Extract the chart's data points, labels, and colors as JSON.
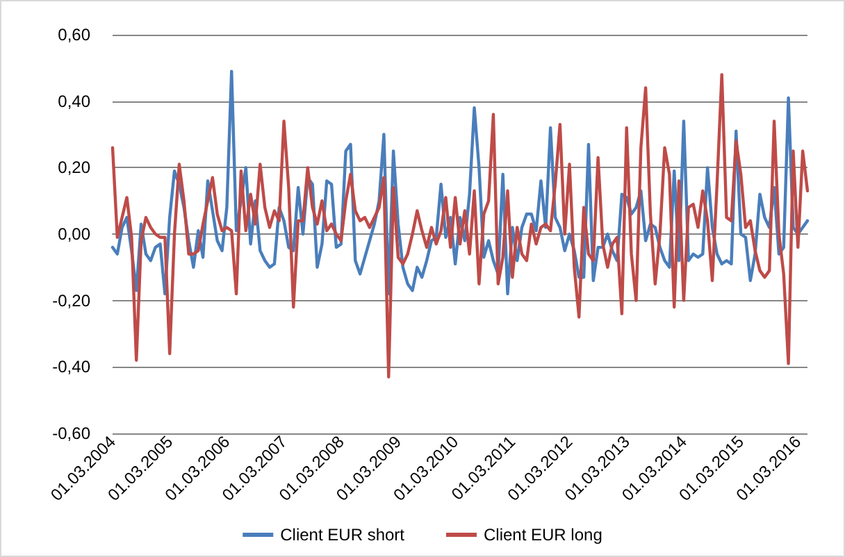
{
  "chart_data": {
    "type": "line",
    "categories": [
      "01.03.2004",
      null,
      null,
      null,
      null,
      null,
      null,
      null,
      null,
      null,
      null,
      null,
      "01.03.2005",
      null,
      null,
      null,
      null,
      null,
      null,
      null,
      null,
      null,
      null,
      null,
      "01.03.2006",
      null,
      null,
      null,
      null,
      null,
      null,
      null,
      null,
      null,
      null,
      null,
      "01.03.2007",
      null,
      null,
      null,
      null,
      null,
      null,
      null,
      null,
      null,
      null,
      null,
      "01.03.2008",
      null,
      null,
      null,
      null,
      null,
      null,
      null,
      null,
      null,
      null,
      null,
      "01.03.2009",
      null,
      null,
      null,
      null,
      null,
      null,
      null,
      null,
      null,
      null,
      null,
      "01.03.2010",
      null,
      null,
      null,
      null,
      null,
      null,
      null,
      null,
      null,
      null,
      null,
      "01.03.2011",
      null,
      null,
      null,
      null,
      null,
      null,
      null,
      null,
      null,
      null,
      null,
      "01.03.2012",
      null,
      null,
      null,
      null,
      null,
      null,
      null,
      null,
      null,
      null,
      null,
      "01.03.2013",
      null,
      null,
      null,
      null,
      null,
      null,
      null,
      null,
      null,
      null,
      null,
      "01.03.2014",
      null,
      null,
      null,
      null,
      null,
      null,
      null,
      null,
      null,
      null,
      null,
      "01.03.2015",
      null,
      null,
      null,
      null,
      null,
      null,
      null,
      null,
      null,
      null,
      null,
      "01.03.2016",
      null,
      null
    ],
    "series": [
      {
        "name": "Client EUR short",
        "color": "#4a7ebb",
        "values": [
          -0.04,
          -0.06,
          0.02,
          0.05,
          -0.05,
          -0.17,
          0.03,
          -0.06,
          -0.08,
          -0.04,
          -0.03,
          -0.18,
          0.05,
          0.19,
          0.15,
          0.08,
          -0.02,
          -0.1,
          0.01,
          -0.07,
          0.16,
          0.07,
          -0.02,
          -0.05,
          0.08,
          0.49,
          0.01,
          0.1,
          0.2,
          -0.03,
          0.1,
          -0.05,
          -0.08,
          -0.1,
          -0.09,
          0.08,
          0.04,
          -0.04,
          -0.05,
          0.14,
          0.0,
          0.17,
          0.15,
          -0.1,
          -0.03,
          0.16,
          0.15,
          -0.04,
          -0.03,
          0.25,
          0.27,
          -0.08,
          -0.12,
          -0.07,
          -0.02,
          0.03,
          0.1,
          0.3,
          -0.18,
          0.25,
          0.03,
          -0.1,
          -0.15,
          -0.17,
          -0.1,
          -0.13,
          -0.08,
          -0.02,
          -0.01,
          0.15,
          -0.01,
          0.05,
          -0.09,
          0.05,
          -0.02,
          0.12,
          0.38,
          0.2,
          -0.07,
          -0.02,
          -0.08,
          -0.12,
          0.18,
          -0.18,
          0.02,
          -0.08,
          0.02,
          0.06,
          0.06,
          0.01,
          0.16,
          0.02,
          0.32,
          0.05,
          0.02,
          -0.05,
          0.0,
          -0.05,
          -0.13,
          -0.13,
          0.27,
          -0.14,
          -0.04,
          -0.04,
          0.0,
          -0.05,
          -0.08,
          0.12,
          0.11,
          0.06,
          0.08,
          0.13,
          -0.02,
          0.03,
          0.02,
          -0.04,
          -0.08,
          -0.1,
          0.19,
          -0.08,
          0.34,
          -0.08,
          -0.06,
          -0.07,
          -0.06,
          0.2,
          0.02,
          -0.06,
          -0.09,
          -0.08,
          -0.09,
          0.31,
          0.0,
          -0.01,
          -0.14,
          -0.06,
          0.12,
          0.05,
          0.02,
          0.14,
          -0.06,
          -0.04,
          0.41,
          0.02,
          0.0,
          0.02,
          0.04
        ]
      },
      {
        "name": "Client EUR long",
        "color": "#be4b48",
        "values": [
          0.26,
          -0.01,
          0.05,
          0.11,
          -0.01,
          -0.38,
          -0.02,
          0.05,
          0.02,
          0.0,
          -0.01,
          -0.01,
          -0.36,
          0.0,
          0.21,
          0.1,
          -0.06,
          -0.06,
          -0.05,
          0.03,
          0.1,
          0.17,
          0.06,
          0.01,
          0.02,
          0.01,
          -0.18,
          0.19,
          0.01,
          0.12,
          0.03,
          0.21,
          0.08,
          0.02,
          0.07,
          0.04,
          0.34,
          0.14,
          -0.22,
          0.04,
          0.04,
          0.2,
          0.08,
          0.03,
          0.1,
          0.01,
          0.03,
          0.0,
          -0.02,
          0.1,
          0.18,
          0.07,
          0.04,
          0.05,
          0.02,
          0.05,
          0.08,
          0.17,
          -0.43,
          0.14,
          -0.07,
          -0.09,
          -0.06,
          0.0,
          0.07,
          0.01,
          -0.04,
          0.02,
          -0.03,
          0.01,
          0.11,
          -0.04,
          0.11,
          -0.03,
          0.07,
          -0.06,
          0.13,
          -0.15,
          0.06,
          0.1,
          0.36,
          -0.15,
          -0.07,
          0.13,
          -0.13,
          0.02,
          -0.06,
          -0.08,
          0.03,
          -0.03,
          0.02,
          0.03,
          0.01,
          0.15,
          0.33,
          0.0,
          0.21,
          -0.1,
          -0.25,
          0.08,
          -0.06,
          -0.08,
          0.23,
          -0.03,
          -0.1,
          -0.03,
          -0.01,
          -0.24,
          0.32,
          -0.06,
          -0.2,
          0.26,
          0.44,
          0.06,
          -0.15,
          0.0,
          0.26,
          0.18,
          -0.22,
          0.16,
          -0.2,
          0.08,
          0.09,
          0.02,
          0.13,
          0.04,
          -0.14,
          0.15,
          0.48,
          0.05,
          0.04,
          0.28,
          0.18,
          0.02,
          0.04,
          -0.05,
          -0.11,
          -0.13,
          -0.11,
          0.34,
          0.0,
          -0.12,
          -0.39,
          0.25,
          -0.04,
          0.25,
          0.13
        ]
      }
    ],
    "ylim": [
      -0.6,
      0.6
    ],
    "yticks": [
      {
        "value": -0.6,
        "label": "-0,60"
      },
      {
        "value": -0.4,
        "label": "-0,40"
      },
      {
        "value": -0.2,
        "label": "-0,20"
      },
      {
        "value": 0,
        "label": "0,00"
      },
      {
        "value": 0.2,
        "label": "0,20"
      },
      {
        "value": 0.4,
        "label": "0,40"
      },
      {
        "value": 0.6,
        "label": "0,60"
      }
    ],
    "grid": "y",
    "legend": "bottom",
    "marker": "none",
    "line_style": "solid"
  }
}
